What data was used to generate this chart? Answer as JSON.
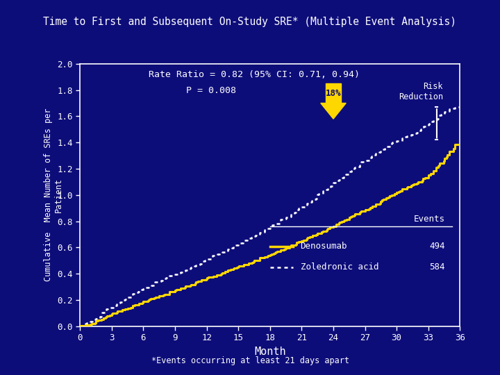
{
  "title": "Time to First and Subsequent On-Study SRE* (Multiple Event Analysis)",
  "ylabel_top": "Cumulative  Mean Number of SREs per",
  "ylabel_bottom": "Patient",
  "xlabel": "Month",
  "footnote": "*Events occurring at least 21 days apart",
  "annotation_line1": "Rate Ratio = 0.82 (95% CI: 0.71, 0.94)",
  "annotation_line2": "P = 0.008",
  "arrow_label": "18%",
  "risk_label": "Risk\nReduction",
  "background_color": "#0d0d7a",
  "line_color_denosumab": "#FFD700",
  "line_color_zoledronic": "#FFFFFF",
  "xlim": [
    0,
    36
  ],
  "ylim": [
    0.0,
    2.0
  ],
  "xticks": [
    0,
    3,
    6,
    9,
    12,
    15,
    18,
    21,
    24,
    27,
    30,
    33,
    36
  ],
  "yticks": [
    0.0,
    0.2,
    0.4,
    0.6,
    0.8,
    1.0,
    1.2,
    1.4,
    1.6,
    1.8,
    2.0
  ],
  "legend_entries": [
    "Denosumab",
    "Zoledronic acid"
  ],
  "legend_events": [
    "494",
    "584"
  ],
  "denosumab_x": [
    0,
    0.5,
    1,
    1.5,
    2,
    2.5,
    3,
    3.5,
    4,
    4.5,
    5,
    5.5,
    6,
    6.5,
    7,
    7.5,
    8,
    8.5,
    9,
    9.5,
    10,
    10.5,
    11,
    11.5,
    12,
    12.5,
    13,
    13.5,
    14,
    14.5,
    15,
    15.5,
    16,
    16.5,
    17,
    17.5,
    18,
    18.5,
    19,
    19.5,
    20,
    20.5,
    21,
    21.5,
    22,
    22.5,
    23,
    23.5,
    24,
    24.5,
    25,
    25.5,
    26,
    26.5,
    27,
    27.5,
    28,
    28.5,
    29,
    29.5,
    30,
    30.5,
    31,
    31.5,
    32,
    32.5,
    33,
    33.5,
    34,
    34.5,
    35,
    35.5,
    36
  ],
  "denosumab_y": [
    0.0,
    0.005,
    0.015,
    0.03,
    0.05,
    0.07,
    0.09,
    0.105,
    0.12,
    0.135,
    0.15,
    0.165,
    0.18,
    0.195,
    0.21,
    0.225,
    0.24,
    0.255,
    0.27,
    0.285,
    0.3,
    0.315,
    0.33,
    0.345,
    0.36,
    0.375,
    0.39,
    0.405,
    0.42,
    0.435,
    0.45,
    0.465,
    0.48,
    0.495,
    0.51,
    0.525,
    0.54,
    0.558,
    0.576,
    0.594,
    0.612,
    0.63,
    0.648,
    0.666,
    0.684,
    0.702,
    0.72,
    0.74,
    0.76,
    0.78,
    0.8,
    0.82,
    0.84,
    0.86,
    0.88,
    0.9,
    0.92,
    0.945,
    0.97,
    0.995,
    1.015,
    1.035,
    1.055,
    1.075,
    1.095,
    1.12,
    1.145,
    1.175,
    1.22,
    1.27,
    1.33,
    1.37,
    1.42
  ],
  "zoledronic_x": [
    0,
    0.5,
    1,
    1.5,
    2,
    2.5,
    3,
    3.5,
    4,
    4.5,
    5,
    5.5,
    6,
    6.5,
    7,
    7.5,
    8,
    8.5,
    9,
    9.5,
    10,
    10.5,
    11,
    11.5,
    12,
    12.5,
    13,
    13.5,
    14,
    14.5,
    15,
    15.5,
    16,
    16.5,
    17,
    17.5,
    18,
    18.5,
    19,
    19.5,
    20,
    20.5,
    21,
    21.5,
    22,
    22.5,
    23,
    23.5,
    24,
    24.5,
    25,
    25.5,
    26,
    26.5,
    27,
    27.5,
    28,
    28.5,
    29,
    29.5,
    30,
    30.5,
    31,
    31.5,
    32,
    32.5,
    33,
    33.5,
    34,
    34.5,
    35,
    35.5,
    36
  ],
  "zoledronic_y": [
    0.0,
    0.01,
    0.03,
    0.055,
    0.085,
    0.115,
    0.14,
    0.165,
    0.19,
    0.215,
    0.24,
    0.26,
    0.28,
    0.3,
    0.32,
    0.34,
    0.36,
    0.375,
    0.39,
    0.405,
    0.425,
    0.445,
    0.465,
    0.485,
    0.505,
    0.525,
    0.545,
    0.565,
    0.585,
    0.605,
    0.625,
    0.645,
    0.665,
    0.685,
    0.705,
    0.725,
    0.75,
    0.775,
    0.8,
    0.825,
    0.85,
    0.875,
    0.905,
    0.93,
    0.96,
    0.99,
    1.02,
    1.05,
    1.08,
    1.11,
    1.14,
    1.17,
    1.2,
    1.225,
    1.255,
    1.28,
    1.31,
    1.335,
    1.36,
    1.385,
    1.405,
    1.425,
    1.445,
    1.465,
    1.485,
    1.51,
    1.535,
    1.565,
    1.6,
    1.63,
    1.655,
    1.665,
    1.67
  ]
}
